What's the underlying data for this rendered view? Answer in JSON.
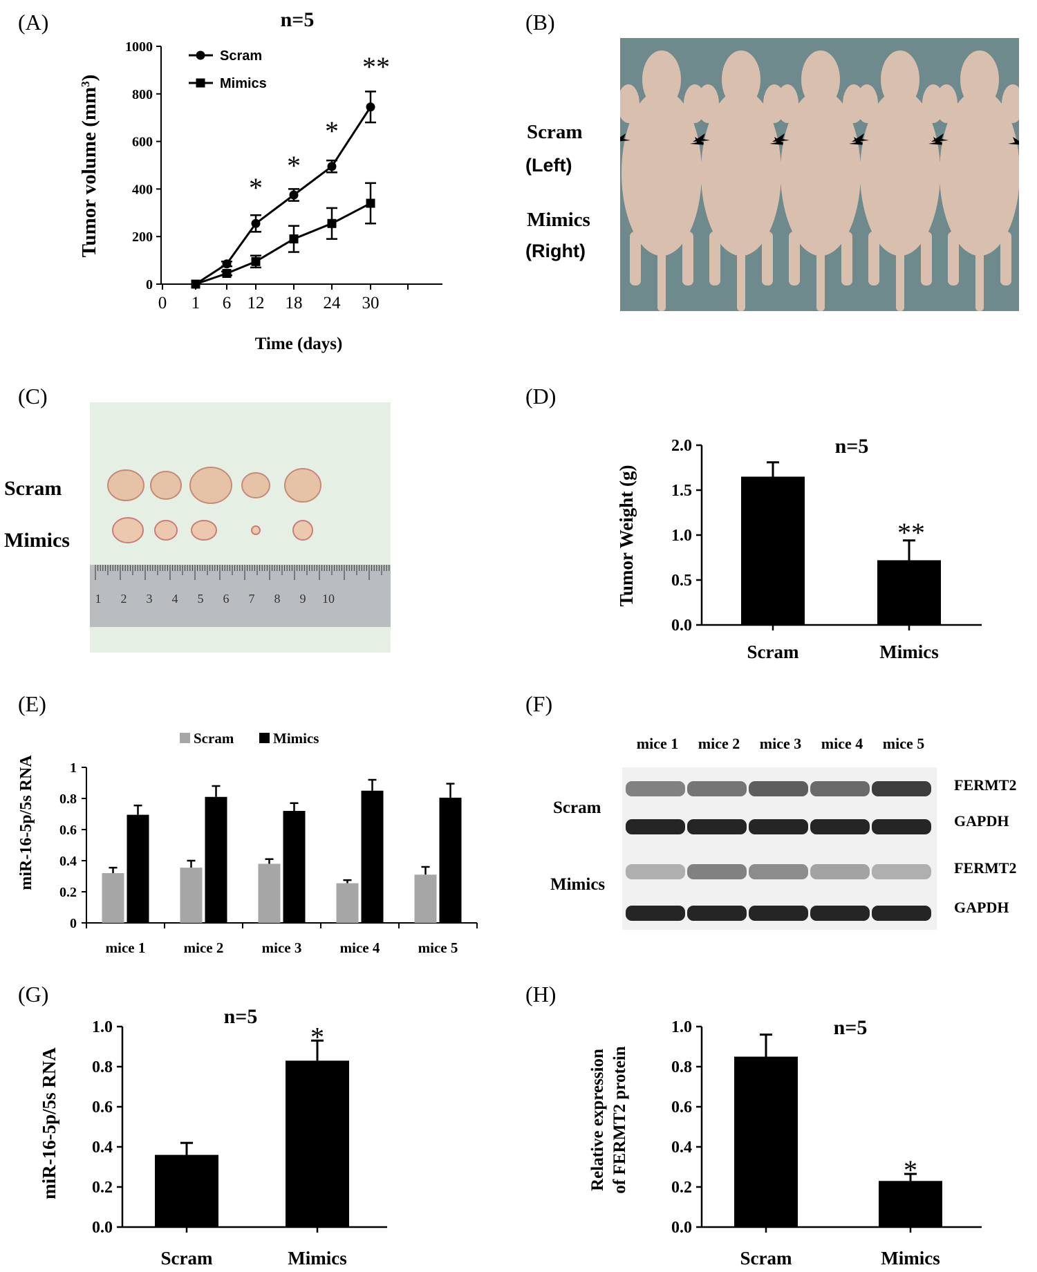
{
  "panels": {
    "a": "(A)",
    "b": "(B)",
    "c": "(C)",
    "d": "(D)",
    "e": "(E)",
    "f": "(F)",
    "g": "(G)",
    "h": "(H)"
  },
  "colors": {
    "bar": "#000000",
    "bar_light": "#a6a6a6",
    "photo_bg_b": "#6e8a8c",
    "photo_bg_c": "#e6efe4",
    "ruler": "#b9bdbf",
    "skin": "#d9bfae"
  },
  "chart_data": [
    {
      "id": "A",
      "type": "line",
      "title": "n=5",
      "xlabel": "Time (days)",
      "ylabel": "Tumor volume (mm³)",
      "ylabel_main": "Tumor volume (mm",
      "ylabel_sup": "3",
      "ylabel_end": ")",
      "x_tick_labels": [
        "0",
        "1",
        "6",
        "12",
        "18",
        "24",
        "30"
      ],
      "y_tick_labels": [
        "0",
        "200",
        "400",
        "600",
        "800",
        "1000"
      ],
      "ylim": [
        0,
        1000
      ],
      "series": [
        {
          "name": "Scram",
          "marker": "circle",
          "x": [
            1,
            6,
            12,
            18,
            24,
            30
          ],
          "values": [
            0,
            85,
            255,
            375,
            495,
            745
          ],
          "errors": [
            0,
            10,
            35,
            25,
            25,
            65
          ]
        },
        {
          "name": "Mimics",
          "marker": "square",
          "x": [
            1,
            6,
            12,
            18,
            24,
            30
          ],
          "values": [
            0,
            45,
            95,
            190,
            255,
            340
          ],
          "errors": [
            0,
            8,
            25,
            55,
            65,
            85
          ]
        }
      ],
      "annotations": [
        {
          "x": 12,
          "text": "*"
        },
        {
          "x": 18,
          "text": "*"
        },
        {
          "x": 24,
          "text": "*"
        },
        {
          "x": 30,
          "text": "**"
        }
      ]
    },
    {
      "id": "D",
      "type": "bar",
      "title": "n=5",
      "ylabel": "Tumor Weight (g)",
      "categories": [
        "Scram",
        "Mimics"
      ],
      "values": [
        1.65,
        0.72
      ],
      "errors": [
        0.16,
        0.22
      ],
      "ylim": [
        0,
        2.0
      ],
      "y_tick_labels": [
        "0.0",
        "0.5",
        "1.0",
        "1.5",
        "2.0"
      ],
      "annotations": [
        "",
        "**"
      ]
    },
    {
      "id": "E",
      "type": "bar",
      "ylabel": "miR-16-5p/5s RNA",
      "categories": [
        "mice 1",
        "mice 2",
        "mice 3",
        "mice 4",
        "mice 5"
      ],
      "series": [
        {
          "name": "Scram",
          "values": [
            0.32,
            0.355,
            0.38,
            0.255,
            0.31
          ],
          "errors": [
            0.035,
            0.045,
            0.03,
            0.02,
            0.05
          ]
        },
        {
          "name": "Mimics",
          "values": [
            0.695,
            0.81,
            0.72,
            0.85,
            0.805
          ],
          "errors": [
            0.06,
            0.07,
            0.05,
            0.07,
            0.09
          ]
        }
      ],
      "ylim": [
        0,
        1
      ],
      "y_tick_labels": [
        "0",
        "0.2",
        "0.4",
        "0.6",
        "0.8",
        "1"
      ]
    },
    {
      "id": "G",
      "type": "bar",
      "title": "n=5",
      "ylabel": "miR-16-5p/5s RNA",
      "categories": [
        "Scram",
        "Mimics"
      ],
      "values": [
        0.36,
        0.83
      ],
      "errors": [
        0.06,
        0.1
      ],
      "ylim": [
        0,
        1.0
      ],
      "y_tick_labels": [
        "0.0",
        "0.2",
        "0.4",
        "0.6",
        "0.8",
        "1.0"
      ],
      "annotations": [
        "",
        "*"
      ]
    },
    {
      "id": "H",
      "type": "bar",
      "title": "n=5",
      "ylabel_line1": "Relative expression",
      "ylabel_line2": "of FERMT2 protein",
      "categories": [
        "Scram",
        "Mimics"
      ],
      "values": [
        0.85,
        0.23
      ],
      "errors": [
        0.11,
        0.035
      ],
      "ylim": [
        0,
        1.0
      ],
      "y_tick_labels": [
        "0.0",
        "0.2",
        "0.4",
        "0.6",
        "0.8",
        "1.0"
      ],
      "annotations": [
        "",
        "*"
      ]
    }
  ],
  "photo_b": {
    "label_scram": "Scram",
    "label_left": "(Left)",
    "label_mimics": "Mimics",
    "label_right": "(Right)"
  },
  "photo_c": {
    "label_scram": "Scram",
    "label_mimics": "Mimics",
    "ruler_numbers": [
      "1",
      "2",
      "3",
      "4",
      "5",
      "6",
      "7",
      "8",
      "9",
      "10"
    ]
  },
  "blot_f": {
    "lanes": [
      "mice 1",
      "mice 2",
      "mice 3",
      "mice 4",
      "mice 5"
    ],
    "group_scram": "Scram",
    "group_mimics": "Mimics",
    "rows": [
      {
        "label": "FERMT2",
        "intensity": [
          0.55,
          0.6,
          0.7,
          0.65,
          0.85
        ]
      },
      {
        "label": "GAPDH",
        "intensity": [
          0.95,
          0.95,
          0.95,
          0.95,
          0.95
        ]
      },
      {
        "label": "FERMT2",
        "intensity": [
          0.35,
          0.55,
          0.5,
          0.4,
          0.35
        ]
      },
      {
        "label": "GAPDH",
        "intensity": [
          0.95,
          0.95,
          0.95,
          0.95,
          0.95
        ]
      }
    ]
  }
}
